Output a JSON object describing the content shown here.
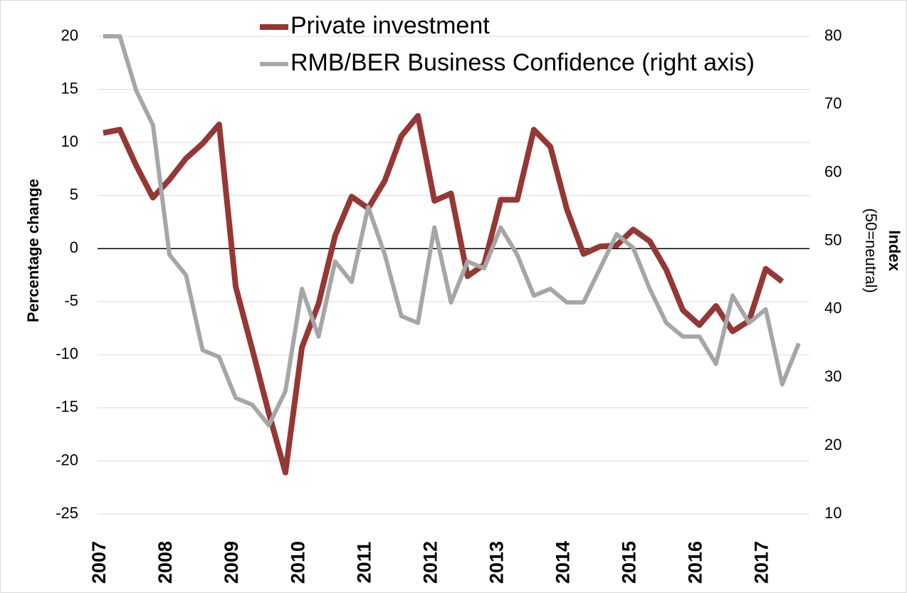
{
  "chart_data": {
    "type": "line",
    "categories": [
      "2007",
      null,
      null,
      null,
      "2008",
      null,
      null,
      null,
      "2009",
      null,
      null,
      null,
      "2010",
      null,
      null,
      null,
      "2011",
      null,
      null,
      null,
      "2012",
      null,
      null,
      null,
      "2013",
      null,
      null,
      null,
      "2014",
      null,
      null,
      null,
      "2015",
      null,
      null,
      null,
      "2016",
      null,
      null,
      null,
      "2017",
      null,
      null
    ],
    "series": [
      {
        "name": "Private investment",
        "color": "#953735",
        "values": [
          10.9,
          11.2,
          7.8,
          4.8,
          6.5,
          8.5,
          9.9,
          11.7,
          -3.6,
          -9.5,
          -15.5,
          -21.1,
          -9.3,
          -5.2,
          1.2,
          4.9,
          3.8,
          6.4,
          10.6,
          12.5,
          4.5,
          5.2,
          -2.6,
          -1.5,
          4.6,
          4.6,
          11.2,
          9.6,
          3.7,
          -0.5,
          0.2,
          0.3,
          1.8,
          0.7,
          -2.0,
          -5.8,
          -7.2,
          -5.4,
          -7.8,
          -6.8,
          -1.9,
          -3.1,
          null
        ]
      },
      {
        "name": "RMB/BER Business Confidence (right axis)",
        "color": "#a6a6a6",
        "axis": "y2",
        "values": [
          80,
          80,
          72,
          67,
          48,
          45,
          34,
          33,
          27,
          26,
          23,
          28,
          43,
          36,
          47,
          44,
          55,
          48,
          39,
          38,
          52,
          41,
          47,
          46,
          52,
          48,
          42,
          43,
          41,
          41,
          46,
          51,
          49,
          43,
          38,
          36,
          36,
          32,
          42,
          38,
          40,
          29,
          35
        ]
      }
    ],
    "y_label": "Percentage change",
    "y2_label": "Index",
    "y2_sublabel": "(50=neutral)",
    "ylim": [
      -25,
      20
    ],
    "yticks": [
      -25,
      -20,
      -15,
      -10,
      -5,
      0,
      5,
      10,
      15,
      20
    ],
    "y2lim": [
      10,
      80
    ],
    "y2ticks": [
      10,
      20,
      30,
      40,
      50,
      60,
      70,
      80
    ],
    "grid": true,
    "legend": "top"
  }
}
